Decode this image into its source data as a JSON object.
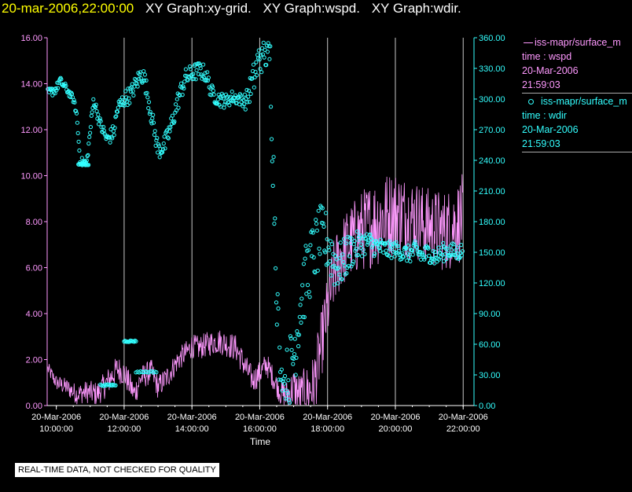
{
  "header": {
    "timestamp": "20-mar-2006,22:00:00",
    "titles": [
      "XY Graph:xy-grid.",
      "XY Graph:wspd.",
      "XY Graph:wdir."
    ]
  },
  "legend": [
    {
      "series": "iss-mapr/surface_m",
      "var": "time : wspd",
      "date": "20-Mar-2006",
      "time": "21:59:03",
      "color": "#ff99ff",
      "marker": "line"
    },
    {
      "series": "iss-mapr/surface_m",
      "var": "time : wdir",
      "date": "20-Mar-2006",
      "time": "21:59:03",
      "color": "#33ffff",
      "marker": "circle"
    }
  ],
  "note": "REAL-TIME DATA, NOT CHECKED FOR QUALITY",
  "colors": {
    "background": "#000000",
    "axis": "#ffffff",
    "grid": "#c8c8c8",
    "wspd": "#ff99ff",
    "wdir": "#33ffff",
    "timestamp": "#ffff00"
  },
  "chart_data": {
    "type": "line",
    "xlabel": "Time",
    "x_ticks": [
      {
        "date": "20-Mar-2006",
        "time": "10:00:00",
        "h": 10
      },
      {
        "date": "20-Mar-2006",
        "time": "12:00:00",
        "h": 12
      },
      {
        "date": "20-Mar-2006",
        "time": "14:00:00",
        "h": 14
      },
      {
        "date": "20-Mar-2006",
        "time": "16:00:00",
        "h": 16
      },
      {
        "date": "20-Mar-2006",
        "time": "18:00:00",
        "h": 18
      },
      {
        "date": "20-Mar-2006",
        "time": "20:00:00",
        "h": 20
      },
      {
        "date": "20-Mar-2006",
        "time": "22:00:00",
        "h": 22
      }
    ],
    "xlim": [
      9.73,
      22.18
    ],
    "y_left": {
      "ylim": [
        0,
        16
      ],
      "ticks": [
        "0.00",
        "2.00",
        "4.00",
        "6.00",
        "8.00",
        "10.00",
        "12.00",
        "14.00",
        "16.00"
      ],
      "color": "#ff99ff"
    },
    "y_right": {
      "ylim": [
        0,
        360
      ],
      "ticks": [
        "0.00",
        "30.00",
        "60.00",
        "90.00",
        "120.00",
        "150.00",
        "180.00",
        "210.00",
        "240.00",
        "270.00",
        "300.00",
        "330.00",
        "360.00"
      ],
      "color": "#33ffff"
    },
    "grid": "vertical",
    "series": [
      {
        "key": "wspd",
        "axis": "left",
        "type": "line",
        "color": "#ff99ff",
        "approx_profile": [
          [
            9.75,
            1.6
          ],
          [
            10.0,
            1.0
          ],
          [
            10.3,
            0.8
          ],
          [
            10.6,
            0.5
          ],
          [
            10.9,
            0.6
          ],
          [
            11.2,
            0.5
          ],
          [
            11.5,
            1.0
          ],
          [
            11.8,
            1.6
          ],
          [
            12.0,
            1.4
          ],
          [
            12.3,
            0.5
          ],
          [
            12.5,
            1.2
          ],
          [
            12.8,
            1.5
          ],
          [
            13.0,
            0.8
          ],
          [
            13.3,
            1.3
          ],
          [
            13.6,
            2.0
          ],
          [
            13.9,
            2.4
          ],
          [
            14.0,
            2.6
          ],
          [
            14.2,
            2.5
          ],
          [
            14.5,
            2.7
          ],
          [
            14.8,
            2.8
          ],
          [
            15.0,
            2.7
          ],
          [
            15.3,
            2.5
          ],
          [
            15.6,
            1.6
          ],
          [
            15.8,
            1.1
          ],
          [
            16.0,
            1.4
          ],
          [
            16.2,
            1.8
          ],
          [
            16.4,
            1.2
          ],
          [
            16.6,
            0.6
          ],
          [
            16.8,
            0.4
          ],
          [
            17.0,
            0.8
          ],
          [
            17.2,
            0.4
          ],
          [
            17.4,
            0.6
          ],
          [
            17.6,
            0.9
          ],
          [
            17.8,
            2.5
          ],
          [
            18.0,
            4.2
          ],
          [
            18.2,
            5.8
          ],
          [
            18.4,
            6.6
          ],
          [
            18.6,
            7.0
          ],
          [
            18.8,
            7.3
          ],
          [
            19.0,
            7.6
          ],
          [
            19.2,
            7.8
          ],
          [
            19.4,
            8.0
          ],
          [
            19.6,
            8.1
          ],
          [
            19.8,
            8.3
          ],
          [
            20.0,
            8.4
          ],
          [
            20.2,
            8.3
          ],
          [
            20.4,
            8.2
          ],
          [
            20.6,
            8.1
          ],
          [
            20.8,
            7.9
          ],
          [
            21.0,
            7.8
          ],
          [
            21.2,
            7.7
          ],
          [
            21.4,
            7.6
          ],
          [
            21.6,
            7.7
          ],
          [
            21.8,
            7.9
          ],
          [
            21.98,
            8.2
          ]
        ],
        "noise": [
          [
            9.75,
            0.3
          ],
          [
            11.5,
            0.6
          ],
          [
            13.5,
            0.5
          ],
          [
            15.5,
            0.6
          ],
          [
            16.5,
            0.5
          ],
          [
            17.8,
            1.5
          ],
          [
            18.5,
            1.6
          ],
          [
            19.0,
            1.8
          ],
          [
            19.5,
            2.0
          ],
          [
            20.0,
            1.9
          ],
          [
            21.0,
            1.7
          ],
          [
            21.98,
            1.9
          ]
        ]
      },
      {
        "key": "wdir",
        "axis": "right",
        "type": "scatter",
        "color": "#33ffff",
        "approx_profile": [
          [
            9.75,
            305
          ],
          [
            10.0,
            310
          ],
          [
            10.1,
            318
          ],
          [
            10.3,
            310
          ],
          [
            10.5,
            300
          ],
          [
            10.6,
            285
          ],
          [
            10.7,
            240
          ],
          [
            10.8,
            238
          ],
          [
            10.9,
            238
          ],
          [
            11.1,
            300
          ],
          [
            11.3,
            275
          ],
          [
            11.5,
            260
          ],
          [
            11.7,
            268
          ],
          [
            11.8,
            290
          ],
          [
            12.0,
            300
          ],
          [
            12.2,
            305
          ],
          [
            12.4,
            318
          ],
          [
            12.5,
            325
          ],
          [
            12.6,
            320
          ],
          [
            13.0,
            250
          ],
          [
            13.2,
            255
          ],
          [
            13.4,
            275
          ],
          [
            13.6,
            300
          ],
          [
            13.8,
            320
          ],
          [
            14.0,
            325
          ],
          [
            14.2,
            328
          ],
          [
            14.4,
            325
          ],
          [
            14.6,
            305
          ],
          [
            14.8,
            300
          ],
          [
            15.0,
            298
          ],
          [
            15.2,
            302
          ],
          [
            15.4,
            300
          ],
          [
            15.6,
            298
          ],
          [
            15.8,
            318
          ],
          [
            16.0,
            340
          ],
          [
            16.1,
            355
          ],
          [
            16.3,
            345
          ],
          [
            16.6,
            10
          ],
          [
            16.8,
            20
          ],
          [
            17.0,
            50
          ],
          [
            17.2,
            100
          ],
          [
            17.4,
            130
          ],
          [
            17.6,
            150
          ],
          [
            17.8,
            165
          ],
          [
            18.0,
            160
          ],
          [
            18.2,
            140
          ],
          [
            18.4,
            138
          ],
          [
            18.6,
            148
          ],
          [
            18.8,
            155
          ],
          [
            19.0,
            158
          ],
          [
            19.2,
            160
          ],
          [
            19.4,
            156
          ],
          [
            19.6,
            154
          ],
          [
            19.8,
            152
          ],
          [
            20.0,
            153
          ],
          [
            20.2,
            150
          ],
          [
            20.4,
            148
          ],
          [
            20.6,
            152
          ],
          [
            20.8,
            146
          ],
          [
            21.0,
            150
          ],
          [
            21.2,
            145
          ],
          [
            21.4,
            150
          ],
          [
            21.6,
            152
          ],
          [
            21.8,
            149
          ],
          [
            21.98,
            152
          ]
        ],
        "noise": [
          [
            9.75,
            5
          ],
          [
            10.6,
            3
          ],
          [
            11.8,
            8
          ],
          [
            13.5,
            10
          ],
          [
            15.5,
            6
          ],
          [
            16.6,
            40
          ],
          [
            17.2,
            35
          ],
          [
            18.0,
            30
          ],
          [
            19.0,
            12
          ],
          [
            20.0,
            8
          ],
          [
            21.0,
            10
          ],
          [
            21.98,
            8
          ]
        ],
        "clusters": [
          {
            "x_range": [
              11.3,
              11.75
            ],
            "value": 20
          },
          {
            "x_range": [
              12.0,
              12.35
            ],
            "value": 63
          },
          {
            "x_range": [
              12.35,
              12.95
            ],
            "value": 33
          },
          {
            "x_range": [
              10.65,
              10.95
            ],
            "value": 236
          }
        ]
      }
    ]
  }
}
